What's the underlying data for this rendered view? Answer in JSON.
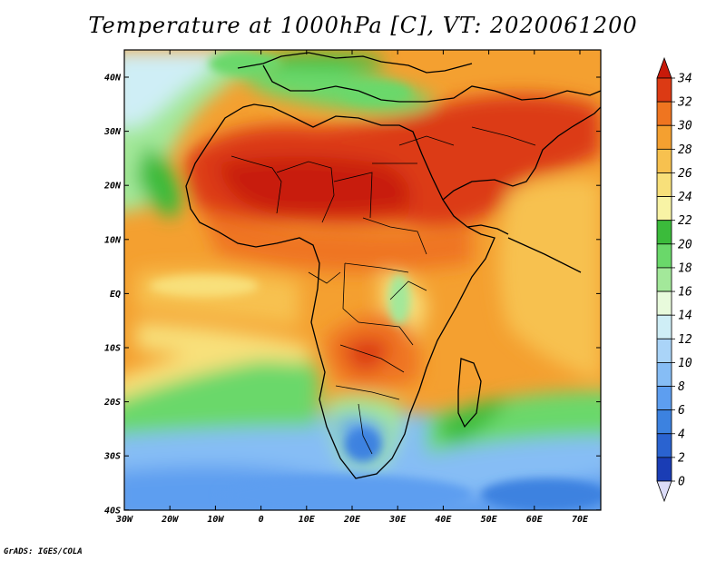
{
  "title": "Temperature at 1000hPa [C], VT: 2020061200",
  "credit": "GrADS: IGES/COLA",
  "map": {
    "lat_labels": [
      "40N",
      "30N",
      "20N",
      "10N",
      "EQ",
      "10S",
      "20S",
      "30S",
      "40S"
    ],
    "lon_labels": [
      "30W",
      "20W",
      "10W",
      "0",
      "10E",
      "20E",
      "30E",
      "40E",
      "50E",
      "60E",
      "70E"
    ]
  },
  "colorbar": {
    "levels": [
      "0",
      "2",
      "4",
      "6",
      "8",
      "10",
      "12",
      "14",
      "16",
      "18",
      "20",
      "22",
      "24",
      "26",
      "28",
      "30",
      "32",
      "34"
    ],
    "colors": [
      "#1b1b8c",
      "#1a3db5",
      "#2a63d0",
      "#3c82e0",
      "#5d9ef0",
      "#86bdf5",
      "#aad4f8",
      "#cfeef6",
      "#e8fadc",
      "#a3e89a",
      "#6ad86a",
      "#3bbb3b",
      "#f8f3a5",
      "#f8e07a",
      "#f7c14f",
      "#f4a030",
      "#ef7520",
      "#dc3a14",
      "#c81a0a"
    ]
  }
}
